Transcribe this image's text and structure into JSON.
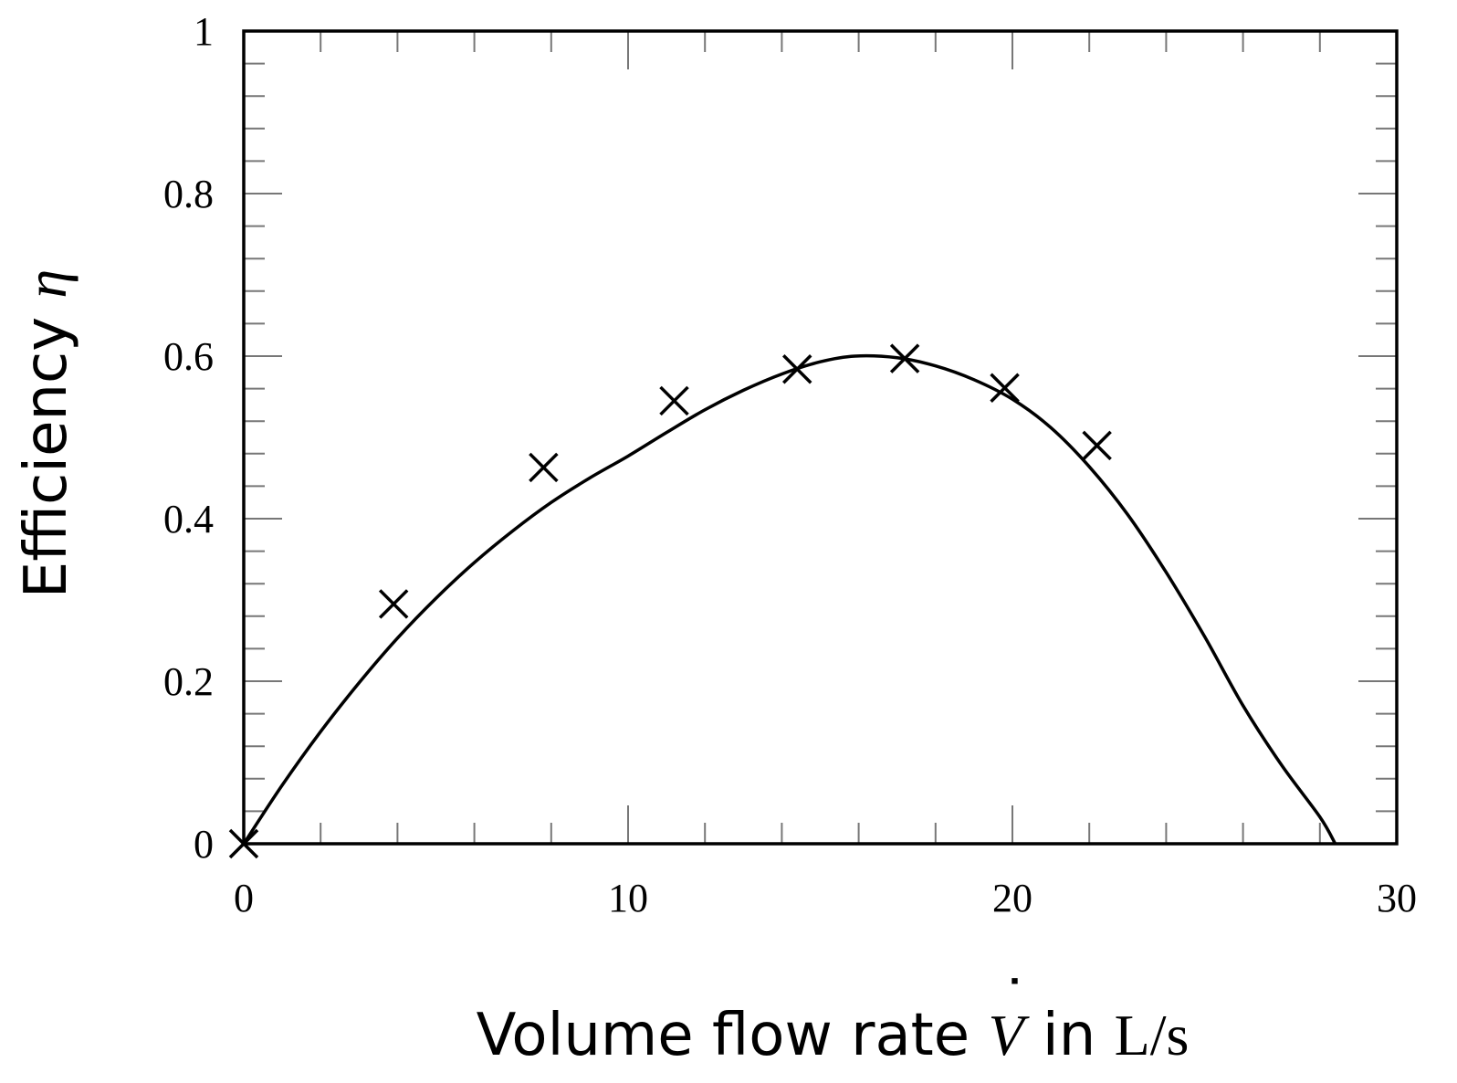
{
  "chart_data": {
    "type": "scatter",
    "title": "",
    "xlabel": {
      "text": "Volume flow rate ",
      "symbol": "V",
      "symbol_accent": "˙",
      "connector": " in ",
      "unit": "L/s"
    },
    "ylabel": {
      "text": "Efficiency ",
      "symbol": "η"
    },
    "xlim": [
      0,
      30
    ],
    "ylim": [
      0,
      1
    ],
    "x_ticks": [
      0,
      10,
      20,
      30
    ],
    "x_tick_labels": [
      "0",
      "10",
      "20",
      "30"
    ],
    "y_ticks": [
      0,
      0.2,
      0.4,
      0.6,
      0.8,
      1
    ],
    "y_tick_labels": [
      "0",
      "0.2",
      "0.4",
      "0.6",
      "0.8",
      "1"
    ],
    "x_minor_step": 2,
    "y_minor_step": 0.04,
    "grid": false,
    "legend": "none",
    "series": [
      {
        "type": "scatter",
        "marker": "x",
        "color": "#000000",
        "x": [
          0,
          3.9,
          7.8,
          11.2,
          14.4,
          17.2,
          19.8,
          22.2
        ],
        "y": [
          0,
          0.295,
          0.463,
          0.545,
          0.584,
          0.597,
          0.561,
          0.49
        ]
      },
      {
        "type": "line",
        "color": "#000000",
        "x": [
          0,
          1,
          2,
          3,
          4,
          5,
          6,
          7,
          8,
          9,
          10,
          11,
          12,
          13,
          14,
          15,
          15.9,
          17,
          18,
          19,
          20,
          21,
          22,
          23,
          24,
          25,
          26,
          27,
          28,
          28.4
        ],
        "y": [
          0,
          0.072,
          0.138,
          0.198,
          0.253,
          0.302,
          0.346,
          0.385,
          0.42,
          0.45,
          0.477,
          0.506,
          0.534,
          0.558,
          0.578,
          0.593,
          0.6,
          0.598,
          0.588,
          0.571,
          0.547,
          0.512,
          0.464,
          0.405,
          0.334,
          0.255,
          0.17,
          0.097,
          0.033,
          0
        ]
      }
    ]
  }
}
